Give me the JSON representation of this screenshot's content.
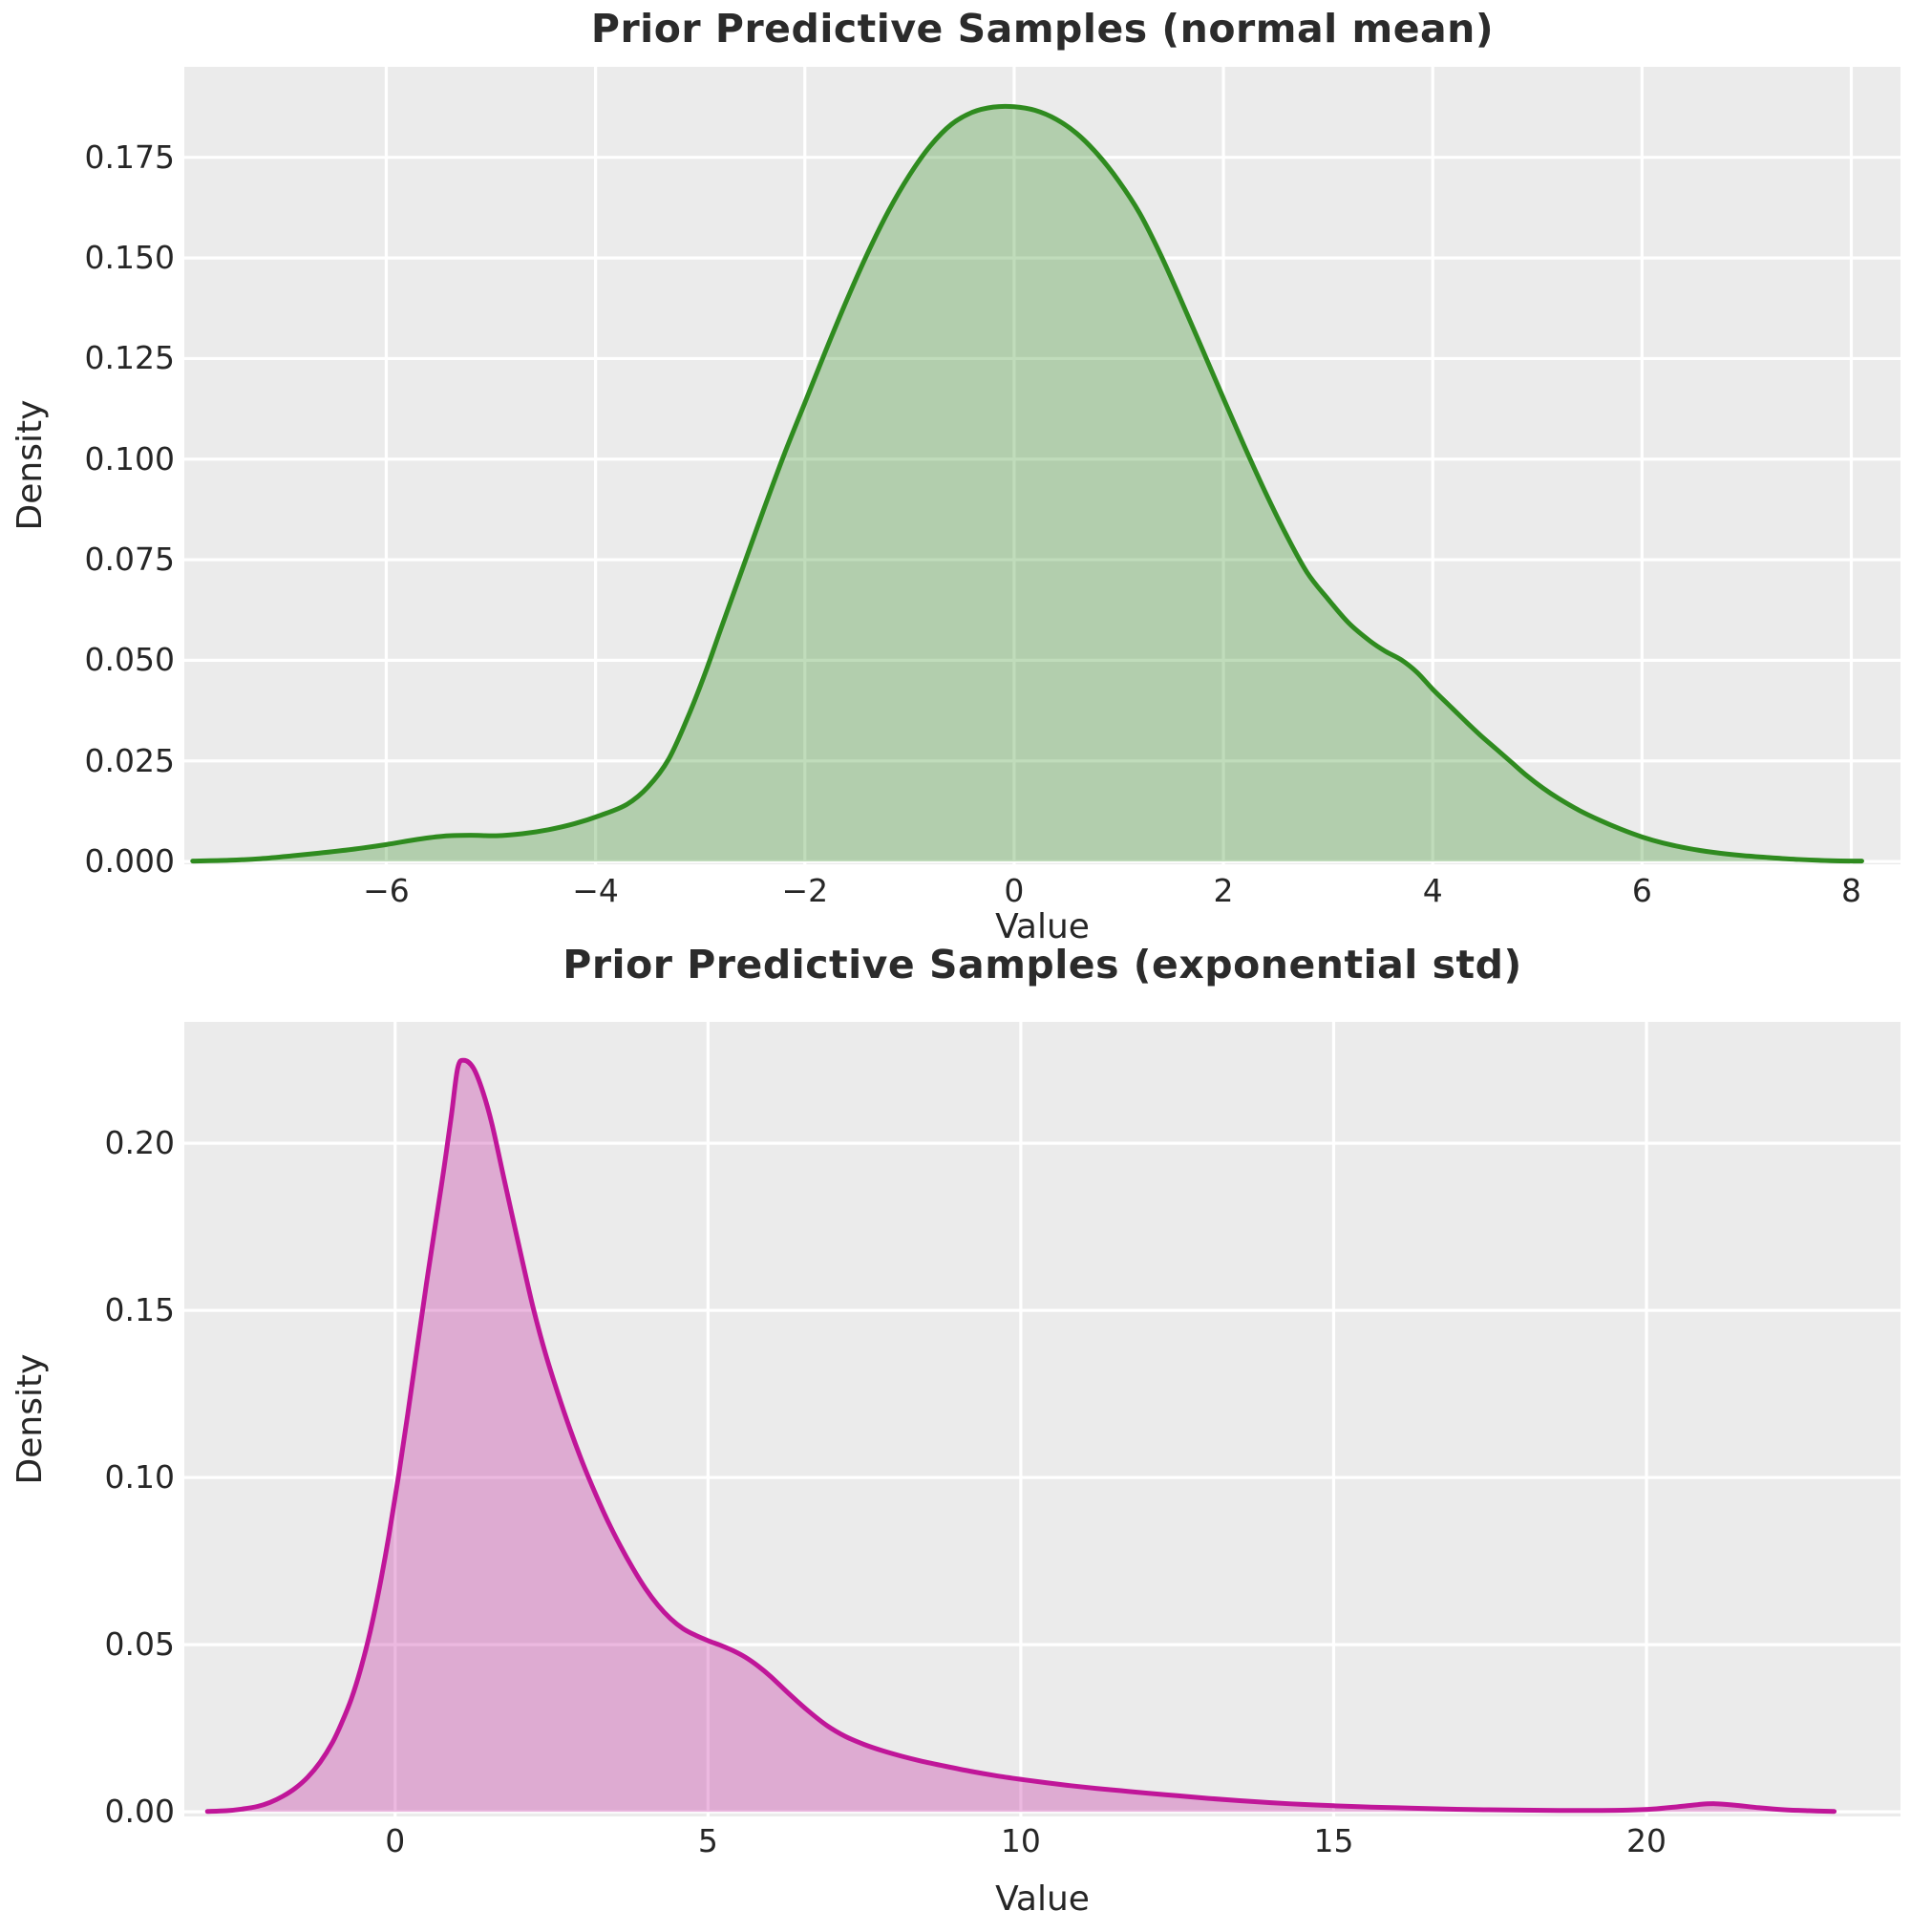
{
  "chart_data": [
    {
      "type": "area",
      "title": "Prior Predictive Samples (normal mean)",
      "xlabel": "Value",
      "ylabel": "Density",
      "line_color": "#2f8b1f",
      "fill_color": "rgba(47,139,31,0.30)",
      "bg_color": "#ebebeb",
      "grid_color": "#ffffff",
      "grid": true,
      "legend": null,
      "xlim": [
        -7.93,
        8.47
      ],
      "ylim": [
        -0.0007,
        0.1975
      ],
      "xticks": {
        "values": [
          -6,
          -4,
          -2,
          0,
          2,
          4,
          6,
          8
        ],
        "labels": [
          "−6",
          "−4",
          "−2",
          "0",
          "2",
          "4",
          "6",
          "8"
        ]
      },
      "yticks": {
        "values": [
          0,
          0.025,
          0.05,
          0.075,
          0.1,
          0.125,
          0.15,
          0.175
        ],
        "labels": [
          "0.000",
          "0.025",
          "0.050",
          "0.075",
          "0.100",
          "0.125",
          "0.150",
          "0.175"
        ]
      },
      "series": [
        {
          "name": "kde-normal-mean",
          "points": [
            [
              -7.85,
              0.0001
            ],
            [
              -7.5,
              0.0003
            ],
            [
              -7.2,
              0.0007
            ],
            [
              -6.9,
              0.0014
            ],
            [
              -6.6,
              0.0022
            ],
            [
              -6.3,
              0.0031
            ],
            [
              -6.0,
              0.0042
            ],
            [
              -5.7,
              0.0055
            ],
            [
              -5.45,
              0.0063
            ],
            [
              -5.2,
              0.0065
            ],
            [
              -4.95,
              0.0064
            ],
            [
              -4.7,
              0.0069
            ],
            [
              -4.45,
              0.0079
            ],
            [
              -4.2,
              0.0094
            ],
            [
              -3.95,
              0.0115
            ],
            [
              -3.7,
              0.0142
            ],
            [
              -3.5,
              0.0185
            ],
            [
              -3.3,
              0.0255
            ],
            [
              -3.1,
              0.037
            ],
            [
              -2.95,
              0.047
            ],
            [
              -2.8,
              0.058
            ],
            [
              -2.6,
              0.0725
            ],
            [
              -2.4,
              0.087
            ],
            [
              -2.2,
              0.101
            ],
            [
              -2.0,
              0.114
            ],
            [
              -1.8,
              0.127
            ],
            [
              -1.6,
              0.1395
            ],
            [
              -1.4,
              0.1512
            ],
            [
              -1.2,
              0.1617
            ],
            [
              -1.0,
              0.1706
            ],
            [
              -0.8,
              0.1779
            ],
            [
              -0.6,
              0.1832
            ],
            [
              -0.4,
              0.1862
            ],
            [
              -0.2,
              0.1875
            ],
            [
              0.0,
              0.1876
            ],
            [
              0.2,
              0.1867
            ],
            [
              0.4,
              0.1845
            ],
            [
              0.6,
              0.1809
            ],
            [
              0.8,
              0.1757
            ],
            [
              1.0,
              0.1691
            ],
            [
              1.2,
              0.1611
            ],
            [
              1.4,
              0.1508
            ],
            [
              1.6,
              0.1392
            ],
            [
              1.8,
              0.1272
            ],
            [
              2.0,
              0.1151
            ],
            [
              2.2,
              0.1032
            ],
            [
              2.4,
              0.0918
            ],
            [
              2.6,
              0.0812
            ],
            [
              2.8,
              0.0718
            ],
            [
              3.0,
              0.0652
            ],
            [
              3.2,
              0.0592
            ],
            [
              3.4,
              0.0548
            ],
            [
              3.55,
              0.0522
            ],
            [
              3.7,
              0.0501
            ],
            [
              3.85,
              0.047
            ],
            [
              4.0,
              0.0428
            ],
            [
              4.15,
              0.039
            ],
            [
              4.3,
              0.0352
            ],
            [
              4.45,
              0.0315
            ],
            [
              4.6,
              0.0281
            ],
            [
              4.75,
              0.0247
            ],
            [
              4.9,
              0.0213
            ],
            [
              5.05,
              0.0183
            ],
            [
              5.2,
              0.0157
            ],
            [
              5.4,
              0.0127
            ],
            [
              5.6,
              0.0102
            ],
            [
              5.8,
              0.008
            ],
            [
              6.0,
              0.0061
            ],
            [
              6.2,
              0.0046
            ],
            [
              6.45,
              0.0032
            ],
            [
              6.7,
              0.0022
            ],
            [
              6.95,
              0.0015
            ],
            [
              7.2,
              0.001
            ],
            [
              7.5,
              0.0005
            ],
            [
              7.8,
              0.0002
            ],
            [
              8.1,
              0.0001
            ]
          ]
        }
      ]
    },
    {
      "type": "area",
      "title": "Prior Predictive Samples (exponential std)",
      "xlabel": "Value",
      "ylabel": "Density",
      "line_color": "#c01699",
      "fill_color": "rgba(192,22,153,0.30)",
      "bg_color": "#ebebeb",
      "grid_color": "#ffffff",
      "grid": true,
      "legend": null,
      "xlim": [
        -3.37,
        24.06
      ],
      "ylim": [
        -0.0014,
        0.2363
      ],
      "xticks": {
        "values": [
          0,
          5,
          10,
          15,
          20
        ],
        "labels": [
          "0",
          "5",
          "10",
          "15",
          "20"
        ]
      },
      "yticks": {
        "values": [
          0,
          0.05,
          0.1,
          0.15,
          0.2
        ],
        "labels": [
          "0.00",
          "0.05",
          "0.10",
          "0.15",
          "0.20"
        ]
      },
      "series": [
        {
          "name": "kde-exponential-std",
          "points": [
            [
              -3.0,
              0.0001
            ],
            [
              -2.7,
              0.0003
            ],
            [
              -2.45,
              0.0008
            ],
            [
              -2.2,
              0.0016
            ],
            [
              -2.0,
              0.0028
            ],
            [
              -1.8,
              0.0046
            ],
            [
              -1.6,
              0.007
            ],
            [
              -1.4,
              0.0103
            ],
            [
              -1.2,
              0.0148
            ],
            [
              -1.0,
              0.0208
            ],
            [
              -0.85,
              0.0268
            ],
            [
              -0.7,
              0.0338
            ],
            [
              -0.55,
              0.0428
            ],
            [
              -0.4,
              0.0538
            ],
            [
              -0.25,
              0.0672
            ],
            [
              -0.1,
              0.0826
            ],
            [
              0.05,
              0.1
            ],
            [
              0.2,
              0.1188
            ],
            [
              0.35,
              0.1385
            ],
            [
              0.5,
              0.158
            ],
            [
              0.65,
              0.1765
            ],
            [
              0.78,
              0.1925
            ],
            [
              0.9,
              0.2085
            ],
            [
              1.0,
              0.2225
            ],
            [
              1.1,
              0.2248
            ],
            [
              1.25,
              0.2225
            ],
            [
              1.4,
              0.2155
            ],
            [
              1.55,
              0.2055
            ],
            [
              1.75,
              0.1885
            ],
            [
              2.0,
              0.1675
            ],
            [
              2.2,
              0.1512
            ],
            [
              2.4,
              0.1372
            ],
            [
              2.6,
              0.1252
            ],
            [
              2.8,
              0.1142
            ],
            [
              3.0,
              0.1042
            ],
            [
              3.2,
              0.0952
            ],
            [
              3.4,
              0.0869
            ],
            [
              3.6,
              0.0795
            ],
            [
              3.8,
              0.0728
            ],
            [
              4.0,
              0.0668
            ],
            [
              4.2,
              0.0618
            ],
            [
              4.4,
              0.0578
            ],
            [
              4.6,
              0.0548
            ],
            [
              4.8,
              0.0528
            ],
            [
              5.0,
              0.0512
            ],
            [
              5.2,
              0.0498
            ],
            [
              5.4,
              0.0482
            ],
            [
              5.6,
              0.0462
            ],
            [
              5.8,
              0.0436
            ],
            [
              6.0,
              0.0405
            ],
            [
              6.3,
              0.0352
            ],
            [
              6.6,
              0.0302
            ],
            [
              6.9,
              0.0258
            ],
            [
              7.2,
              0.0225
            ],
            [
              7.5,
              0.0201
            ],
            [
              7.8,
              0.0182
            ],
            [
              8.1,
              0.0166
            ],
            [
              8.4,
              0.0152
            ],
            [
              8.8,
              0.0136
            ],
            [
              9.2,
              0.0121
            ],
            [
              9.6,
              0.0108
            ],
            [
              10.0,
              0.0097
            ],
            [
              10.4,
              0.0087
            ],
            [
              10.8,
              0.0078
            ],
            [
              11.2,
              0.007
            ],
            [
              11.6,
              0.0063
            ],
            [
              12.0,
              0.0056
            ],
            [
              12.5,
              0.0048
            ],
            [
              13.0,
              0.004
            ],
            [
              13.5,
              0.0033
            ],
            [
              14.0,
              0.0027
            ],
            [
              14.5,
              0.0022
            ],
            [
              15.0,
              0.0018
            ],
            [
              15.6,
              0.0014
            ],
            [
              16.2,
              0.0011
            ],
            [
              16.8,
              0.0008
            ],
            [
              17.4,
              0.0006
            ],
            [
              18.0,
              0.0005
            ],
            [
              18.6,
              0.0004
            ],
            [
              19.2,
              0.0004
            ],
            [
              19.7,
              0.0005
            ],
            [
              20.1,
              0.0008
            ],
            [
              20.5,
              0.0015
            ],
            [
              20.85,
              0.0022
            ],
            [
              21.1,
              0.0024
            ],
            [
              21.4,
              0.002
            ],
            [
              21.8,
              0.0012
            ],
            [
              22.2,
              0.0006
            ],
            [
              22.6,
              0.0003
            ],
            [
              23.0,
              0.0001
            ]
          ]
        }
      ]
    }
  ]
}
